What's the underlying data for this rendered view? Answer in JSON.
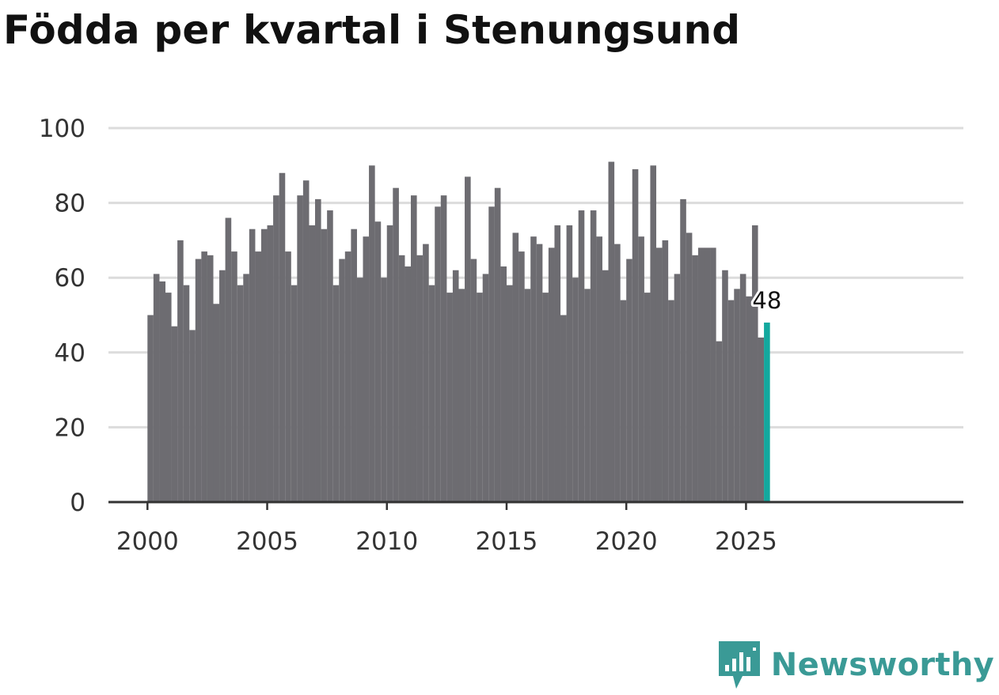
{
  "chart_data": {
    "type": "bar",
    "title": "Födda per kvartal i Stenungsund",
    "xlabel": "",
    "ylabel": "",
    "frequency": "quarterly",
    "start": "2000 Q1",
    "end": "2025 Q4",
    "x_ticks": [
      "2000",
      "2005",
      "2010",
      "2015",
      "2020",
      "2025"
    ],
    "y_ticks": [
      0,
      20,
      40,
      60,
      80,
      100
    ],
    "ylim": [
      0,
      100
    ],
    "grid": true,
    "values": [
      50,
      61,
      59,
      56,
      47,
      70,
      58,
      46,
      65,
      67,
      66,
      53,
      62,
      76,
      67,
      58,
      61,
      73,
      67,
      73,
      74,
      82,
      88,
      67,
      58,
      82,
      86,
      74,
      81,
      73,
      78,
      58,
      65,
      67,
      73,
      60,
      71,
      90,
      75,
      60,
      74,
      84,
      66,
      63,
      82,
      66,
      69,
      58,
      79,
      82,
      56,
      62,
      57,
      87,
      65,
      56,
      61,
      79,
      84,
      63,
      58,
      72,
      67,
      57,
      71,
      69,
      56,
      68,
      74,
      50,
      74,
      60,
      78,
      57,
      78,
      71,
      62,
      91,
      69,
      54,
      65,
      89,
      71,
      56,
      90,
      68,
      70,
      54,
      61,
      81,
      72,
      66,
      68,
      68,
      68,
      43,
      62,
      54,
      57,
      61,
      55,
      74,
      44,
      48
    ],
    "highlight": {
      "label": "48",
      "value": 48,
      "color": "#13a89e"
    },
    "bar_color": "#6d6c71",
    "grid_color": "#dcdcdc",
    "axis_color": "#333333"
  },
  "brand": {
    "name": "Newsworthy",
    "color": "#3a9a96",
    "icon": "newsworthy-logo-icon"
  }
}
